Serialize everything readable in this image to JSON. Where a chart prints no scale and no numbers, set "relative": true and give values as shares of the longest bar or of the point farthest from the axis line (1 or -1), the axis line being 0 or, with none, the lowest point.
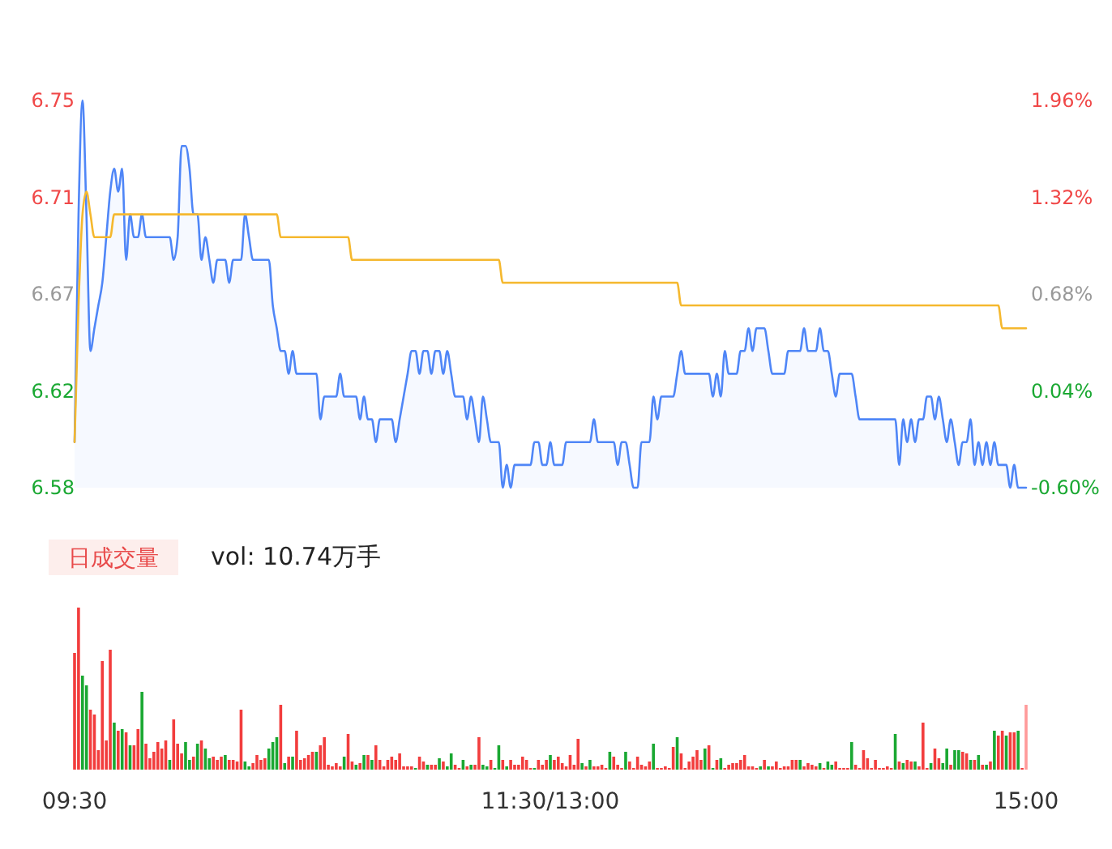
{
  "chart_data": [
    {
      "type": "area",
      "categories": [
        null,
        null,
        null,
        null,
        null,
        null,
        null,
        null,
        null,
        null,
        null,
        null,
        null,
        null,
        null,
        null,
        null,
        null,
        null,
        null,
        null,
        null,
        null,
        null,
        null,
        null,
        null,
        null,
        null,
        null,
        null,
        null,
        null,
        null,
        null,
        null,
        null,
        null,
        null,
        null,
        null,
        null,
        null,
        null,
        null,
        null,
        null,
        null,
        null,
        null,
        null,
        null,
        null,
        null,
        null,
        null,
        null,
        null,
        null,
        null,
        null,
        null,
        null,
        null,
        null,
        null,
        null,
        null,
        null,
        null,
        null,
        null,
        null,
        null,
        null,
        null,
        null,
        null,
        null,
        null,
        null,
        null,
        null,
        null,
        null,
        null,
        null,
        null,
        null,
        null,
        null,
        null,
        null,
        null,
        null,
        null,
        null,
        null,
        null,
        null,
        null,
        null,
        null,
        null,
        null,
        null,
        null,
        null,
        null,
        null,
        null,
        null,
        null,
        null,
        null,
        null,
        null,
        null,
        null,
        null,
        null,
        null,
        null,
        null,
        null,
        null,
        null,
        null,
        null,
        null,
        null,
        null,
        null,
        null,
        null,
        null,
        null,
        null,
        null,
        null,
        null,
        null,
        null,
        null,
        null,
        null,
        null,
        null,
        null,
        null,
        null,
        null,
        null,
        null,
        null,
        null,
        null,
        null,
        null,
        null,
        null,
        null,
        null,
        null,
        null,
        null,
        null,
        null,
        null,
        null,
        null,
        null,
        null,
        null,
        null,
        null,
        null,
        null,
        null,
        null,
        null,
        null,
        null,
        null,
        null,
        null,
        null,
        null,
        null,
        null,
        null,
        null,
        null,
        null,
        null,
        null,
        null,
        null,
        null,
        null,
        null,
        null,
        null,
        null,
        null,
        null,
        null,
        null,
        null,
        null,
        null,
        null,
        null,
        null,
        null,
        null,
        null,
        null,
        null,
        null,
        null,
        null,
        null,
        null,
        null,
        null,
        null,
        null,
        null,
        null,
        null,
        null,
        null,
        null,
        null,
        null,
        null,
        null,
        null,
        null,
        null
      ],
      "ylim": [
        6.58,
        6.75
      ],
      "yticks": [
        {
          "value": 6.58,
          "label": "6.58"
        },
        {
          "value": 6.6225,
          "label": "6.62"
        },
        {
          "value": 6.665,
          "label": "6.67"
        },
        {
          "value": 6.7075,
          "label": "6.71"
        },
        {
          "value": 6.75,
          "label": "6.75"
        }
      ],
      "y2lim": [
        -0.6,
        1.96
      ],
      "y2ticks": [
        {
          "value": -0.6,
          "label": "-0.60%"
        },
        {
          "value": 0.04,
          "label": "0.04%"
        },
        {
          "value": 0.68,
          "label": "0.68%"
        },
        {
          "value": 1.32,
          "label": "1.32%"
        },
        {
          "value": 1.96,
          "label": "1.96%"
        }
      ],
      "tick_labels": "y",
      "series": [
        {
          "color": "#4f86f7",
          "values": [
            6.6,
            6.7,
            6.75,
            6.7,
            6.64,
            6.65,
            6.66,
            6.67,
            6.69,
            6.71,
            6.72,
            6.71,
            6.72,
            6.68,
            6.7,
            6.69,
            6.69,
            6.7,
            6.69,
            6.69,
            6.69,
            6.69,
            6.69,
            6.69,
            6.69,
            6.68,
            6.69,
            6.73,
            6.73,
            6.72,
            6.7,
            6.7,
            6.68,
            6.69,
            6.68,
            6.67,
            6.68,
            6.68,
            6.68,
            6.67,
            6.68,
            6.68,
            6.68,
            6.7,
            6.69,
            6.68,
            6.68,
            6.68,
            6.68,
            6.68,
            6.66,
            6.65,
            6.64,
            6.64,
            6.63,
            6.64,
            6.63,
            6.63,
            6.63,
            6.63,
            6.63,
            6.63,
            6.61,
            6.62,
            6.62,
            6.62,
            6.62,
            6.63,
            6.62,
            6.62,
            6.62,
            6.62,
            6.61,
            6.62,
            6.61,
            6.61,
            6.6,
            6.61,
            6.61,
            6.61,
            6.61,
            6.6,
            6.61,
            6.62,
            6.63,
            6.64,
            6.64,
            6.63,
            6.64,
            6.64,
            6.63,
            6.64,
            6.64,
            6.63,
            6.64,
            6.63,
            6.62,
            6.62,
            6.62,
            6.61,
            6.62,
            6.61,
            6.6,
            6.62,
            6.61,
            6.6,
            6.6,
            6.6,
            6.58,
            6.59,
            6.58,
            6.59,
            6.59,
            6.59,
            6.59,
            6.59,
            6.6,
            6.6,
            6.59,
            6.59,
            6.6,
            6.59,
            6.59,
            6.59,
            6.6,
            6.6,
            6.6,
            6.6,
            6.6,
            6.6,
            6.6,
            6.61,
            6.6,
            6.6,
            6.6,
            6.6,
            6.6,
            6.59,
            6.6,
            6.6,
            6.59,
            6.58,
            6.58,
            6.6,
            6.6,
            6.6,
            6.62,
            6.61,
            6.62,
            6.62,
            6.62,
            6.62,
            6.63,
            6.64,
            6.63,
            6.63,
            6.63,
            6.63,
            6.63,
            6.63,
            6.63,
            6.62,
            6.63,
            6.62,
            6.64,
            6.63,
            6.63,
            6.63,
            6.64,
            6.64,
            6.65,
            6.64,
            6.65,
            6.65,
            6.65,
            6.64,
            6.63,
            6.63,
            6.63,
            6.63,
            6.64,
            6.64,
            6.64,
            6.64,
            6.65,
            6.64,
            6.64,
            6.64,
            6.65,
            6.64,
            6.64,
            6.63,
            6.62,
            6.63,
            6.63,
            6.63,
            6.63,
            6.62,
            6.61,
            6.61,
            6.61,
            6.61,
            6.61,
            6.61,
            6.61,
            6.61,
            6.61,
            6.61,
            6.59,
            6.61,
            6.6,
            6.61,
            6.6,
            6.61,
            6.61,
            6.62,
            6.62,
            6.61,
            6.62,
            6.61,
            6.6,
            6.61,
            6.6,
            6.59,
            6.6,
            6.6,
            6.61,
            6.59,
            6.6,
            6.59,
            6.6,
            6.59,
            6.6,
            6.59,
            6.59,
            6.59,
            6.58,
            6.59,
            6.58,
            6.58,
            6.58
          ]
        },
        {
          "type": "line",
          "color": "#f5b82e",
          "values": [
            6.6,
            6.66,
            6.7,
            6.71,
            6.7,
            6.69,
            6.69,
            6.69,
            6.69,
            6.69,
            6.7,
            6.7,
            6.7,
            6.7,
            6.7,
            6.7,
            6.7,
            6.7,
            6.7,
            6.7,
            6.7,
            6.7,
            6.7,
            6.7,
            6.7,
            6.7,
            6.7,
            6.7,
            6.7,
            6.7,
            6.7,
            6.7,
            6.7,
            6.7,
            6.7,
            6.7,
            6.7,
            6.7,
            6.7,
            6.7,
            6.7,
            6.7,
            6.7,
            6.7,
            6.7,
            6.7,
            6.7,
            6.7,
            6.7,
            6.7,
            6.7,
            6.7,
            6.69,
            6.69,
            6.69,
            6.69,
            6.69,
            6.69,
            6.69,
            6.69,
            6.69,
            6.69,
            6.69,
            6.69,
            6.69,
            6.69,
            6.69,
            6.69,
            6.69,
            6.69,
            6.68,
            6.68,
            6.68,
            6.68,
            6.68,
            6.68,
            6.68,
            6.68,
            6.68,
            6.68,
            6.68,
            6.68,
            6.68,
            6.68,
            6.68,
            6.68,
            6.68,
            6.68,
            6.68,
            6.68,
            6.68,
            6.68,
            6.68,
            6.68,
            6.68,
            6.68,
            6.68,
            6.68,
            6.68,
            6.68,
            6.68,
            6.68,
            6.68,
            6.68,
            6.68,
            6.68,
            6.68,
            6.68,
            6.67,
            6.67,
            6.67,
            6.67,
            6.67,
            6.67,
            6.67,
            6.67,
            6.67,
            6.67,
            6.67,
            6.67,
            6.67,
            6.67,
            6.67,
            6.67,
            6.67,
            6.67,
            6.67,
            6.67,
            6.67,
            6.67,
            6.67,
            6.67,
            6.67,
            6.67,
            6.67,
            6.67,
            6.67,
            6.67,
            6.67,
            6.67,
            6.67,
            6.67,
            6.67,
            6.67,
            6.67,
            6.67,
            6.67,
            6.67,
            6.67,
            6.67,
            6.67,
            6.67,
            6.67,
            6.66,
            6.66,
            6.66,
            6.66,
            6.66,
            6.66,
            6.66,
            6.66,
            6.66,
            6.66,
            6.66,
            6.66,
            6.66,
            6.66,
            6.66,
            6.66,
            6.66,
            6.66,
            6.66,
            6.66,
            6.66,
            6.66,
            6.66,
            6.66,
            6.66,
            6.66,
            6.66,
            6.66,
            6.66,
            6.66,
            6.66,
            6.66,
            6.66,
            6.66,
            6.66,
            6.66,
            6.66,
            6.66,
            6.66,
            6.66,
            6.66,
            6.66,
            6.66,
            6.66,
            6.66,
            6.66,
            6.66,
            6.66,
            6.66,
            6.66,
            6.66,
            6.66,
            6.66,
            6.66,
            6.66,
            6.66,
            6.66,
            6.66,
            6.66,
            6.66,
            6.66,
            6.66,
            6.66,
            6.66,
            6.66,
            6.66,
            6.66,
            6.66,
            6.66,
            6.66,
            6.66,
            6.66,
            6.66,
            6.66,
            6.66,
            6.66,
            6.66,
            6.66,
            6.66,
            6.66,
            6.66,
            6.65,
            6.65,
            6.65,
            6.65,
            6.65,
            6.65,
            6.65
          ]
        }
      ]
    },
    {
      "type": "bar",
      "relative": true,
      "tick_labels": "x",
      "annotations": [
        "日成交量",
        "vol: 10.74万手"
      ],
      "categories": [
        "09:30",
        null,
        null,
        null,
        null,
        null,
        null,
        null,
        null,
        null,
        null,
        null,
        null,
        null,
        null,
        null,
        null,
        null,
        null,
        null,
        null,
        null,
        null,
        null,
        null,
        null,
        null,
        null,
        null,
        null,
        null,
        null,
        null,
        null,
        null,
        null,
        null,
        null,
        null,
        null,
        null,
        null,
        null,
        null,
        null,
        null,
        null,
        null,
        null,
        null,
        null,
        null,
        null,
        null,
        null,
        null,
        null,
        null,
        null,
        null,
        null,
        null,
        null,
        null,
        null,
        null,
        null,
        null,
        null,
        null,
        null,
        null,
        null,
        null,
        null,
        null,
        null,
        null,
        null,
        null,
        null,
        null,
        null,
        null,
        null,
        null,
        null,
        null,
        null,
        null,
        null,
        null,
        null,
        null,
        null,
        null,
        null,
        null,
        null,
        null,
        null,
        null,
        null,
        null,
        null,
        null,
        null,
        null,
        null,
        null,
        null,
        null,
        null,
        null,
        null,
        null,
        null,
        null,
        null,
        null,
        "11:30/13:00",
        null,
        null,
        null,
        null,
        null,
        null,
        null,
        null,
        null,
        null,
        null,
        null,
        null,
        null,
        null,
        null,
        null,
        null,
        null,
        null,
        null,
        null,
        null,
        null,
        null,
        null,
        null,
        null,
        null,
        null,
        null,
        null,
        null,
        null,
        null,
        null,
        null,
        null,
        null,
        null,
        null,
        null,
        null,
        null,
        null,
        null,
        null,
        null,
        null,
        null,
        null,
        null,
        null,
        null,
        null,
        null,
        null,
        null,
        null,
        null,
        null,
        null,
        null,
        null,
        null,
        null,
        null,
        null,
        null,
        null,
        null,
        null,
        null,
        null,
        null,
        null,
        null,
        null,
        null,
        null,
        null,
        null,
        null,
        null,
        null,
        null,
        null,
        null,
        null,
        null,
        null,
        null,
        null,
        null,
        null,
        null,
        null,
        null,
        null,
        null,
        null,
        null,
        null,
        null,
        null,
        null,
        null,
        null,
        null,
        null,
        null,
        null,
        null,
        null,
        null,
        null,
        null,
        null,
        null,
        "15:00"
      ],
      "series": [
        {
          "values": [
            0.72,
            1,
            0.58,
            0.52,
            0.37,
            0.34,
            0.12,
            0.67,
            0.18,
            0.74,
            0.29,
            0.24,
            0.25,
            0.23,
            0.15,
            0.15,
            0.25,
            0.48,
            0.16,
            0.07,
            0.11,
            0.17,
            0.13,
            0.18,
            0.06,
            0.31,
            0.16,
            0.1,
            0.17,
            0.06,
            0.08,
            0.16,
            0.18,
            0.13,
            0.07,
            0.08,
            0.06,
            0.08,
            0.09,
            0.06,
            0.06,
            0.05,
            0.37,
            0.05,
            0.02,
            0.04,
            0.09,
            0.06,
            0.07,
            0.13,
            0.17,
            0.2,
            0.4,
            0.04,
            0.08,
            0.08,
            0.24,
            0.06,
            0.07,
            0.09,
            0.11,
            0.11,
            0.15,
            0.2,
            0.03,
            0.02,
            0.04,
            0.02,
            0.08,
            0.22,
            0.05,
            0.03,
            0.04,
            0.09,
            0.09,
            0.06,
            0.15,
            0.06,
            0.02,
            0.06,
            0.08,
            0.06,
            0.1,
            0.02,
            0.02,
            0.02,
            0.01,
            0.08,
            0.05,
            0.03,
            0.03,
            0.03,
            0.07,
            0.05,
            0.02,
            0.1,
            0.03,
            0.01,
            0.06,
            0.02,
            0.03,
            0.03,
            0.2,
            0.03,
            0.02,
            0.06,
            0.01,
            0.15,
            0.06,
            0.02,
            0.06,
            0.03,
            0.03,
            0.08,
            0.06,
            0.01,
            0.01,
            0.06,
            0.03,
            0.06,
            0.09,
            0.06,
            0.08,
            0.04,
            0.02,
            0.09,
            0.03,
            0.19,
            0.04,
            0.02,
            0.06,
            0.02,
            0.02,
            0.03,
            0.01,
            0.11,
            0.08,
            0.03,
            0.01,
            0.11,
            0.05,
            0.01,
            0.08,
            0.03,
            0.02,
            0.05,
            0.16,
            0.01,
            0.01,
            0.02,
            0.01,
            0.14,
            0.2,
            0.1,
            0.01,
            0.05,
            0.08,
            0.12,
            0.06,
            0.13,
            0.15,
            0.01,
            0.06,
            0.07,
            0.01,
            0.03,
            0.04,
            0.04,
            0.06,
            0.09,
            0.02,
            0.02,
            0.01,
            0.02,
            0.06,
            0.02,
            0.02,
            0.05,
            0.01,
            0.02,
            0.02,
            0.06,
            0.06,
            0.06,
            0.02,
            0.04,
            0.03,
            0.02,
            0.04,
            0.01,
            0.05,
            0.03,
            0.05,
            0.01,
            0.01,
            0.01,
            0.17,
            0.03,
            0.01,
            0.12,
            0.07,
            0.01,
            0.06,
            0.01,
            0.01,
            0.02,
            0.01,
            0.22,
            0.05,
            0.04,
            0.06,
            0.05,
            0.05,
            0.02,
            0.29,
            0.01,
            0.04,
            0.13,
            0.07,
            0.04,
            0.13,
            0.03,
            0.12,
            0.12,
            0.11,
            0.1,
            0.06,
            0.06,
            0.09,
            0.03,
            0.03,
            0.05,
            0.24,
            0.21,
            0.24,
            0.21,
            0.23,
            0.23,
            0.24,
            0.01,
            0.4
          ],
          "colors": [
            "#f23d3d",
            "#f23d3d",
            "#1aa832",
            "#1aa832",
            "#f23d3d",
            "#f23d3d",
            "#f23d3d",
            "#f23d3d",
            "#f23d3d",
            "#f23d3d",
            "#1aa832",
            "#f23d3d",
            "#1aa832",
            "#f23d3d",
            "#1aa832",
            "#f23d3d",
            "#f23d3d",
            "#1aa832",
            "#f23d3d",
            "#f23d3d",
            "#f23d3d",
            "#f23d3d",
            "#f23d3d",
            "#f23d3d",
            "#1aa832",
            "#f23d3d",
            "#f23d3d",
            "#f23d3d",
            "#1aa832",
            "#1aa832",
            "#f23d3d",
            "#1aa832",
            "#f23d3d",
            "#1aa832",
            "#1aa832",
            "#f23d3d",
            "#f23d3d",
            "#f23d3d",
            "#1aa832",
            "#f23d3d",
            "#f23d3d",
            "#f23d3d",
            "#f23d3d",
            "#1aa832",
            "#1aa832",
            "#f23d3d",
            "#f23d3d",
            "#f23d3d",
            "#f23d3d",
            "#1aa832",
            "#1aa832",
            "#1aa832",
            "#f23d3d",
            "#1aa832",
            "#f23d3d",
            "#1aa832",
            "#f23d3d",
            "#f23d3d",
            "#f23d3d",
            "#f23d3d",
            "#f23d3d",
            "#1aa832",
            "#f23d3d",
            "#f23d3d",
            "#f23d3d",
            "#f23d3d",
            "#f23d3d",
            "#f23d3d",
            "#1aa832",
            "#f23d3d",
            "#f23d3d",
            "#1aa832",
            "#f23d3d",
            "#1aa832",
            "#f23d3d",
            "#1aa832",
            "#f23d3d",
            "#f23d3d",
            "#f23d3d",
            "#f23d3d",
            "#f23d3d",
            "#f23d3d",
            "#f23d3d",
            "#f23d3d",
            "#f23d3d",
            "#f23d3d",
            "#1aa832",
            "#f23d3d",
            "#f23d3d",
            "#1aa832",
            "#f23d3d",
            "#f23d3d",
            "#1aa832",
            "#f23d3d",
            "#1aa832",
            "#1aa832",
            "#f23d3d",
            "#f23d3d",
            "#1aa832",
            "#f23d3d",
            "#1aa832",
            "#f23d3d",
            "#f23d3d",
            "#1aa832",
            "#1aa832",
            "#f23d3d",
            "#1aa832",
            "#1aa832",
            "#f23d3d",
            "#1aa832",
            "#f23d3d",
            "#f23d3d",
            "#f23d3d",
            "#f23d3d",
            "#f23d3d",
            "#f23d3d",
            "#1aa832",
            "#f23d3d",
            "#f23d3d",
            "#f23d3d",
            "#1aa832",
            "#f23d3d",
            "#f23d3d",
            "#f23d3d",
            "#f23d3d",
            "#f23d3d",
            "#f23d3d",
            "#f23d3d",
            "#1aa832",
            "#f23d3d",
            "#1aa832",
            "#f23d3d",
            "#f23d3d",
            "#f23d3d",
            "#f23d3d",
            "#1aa832",
            "#f23d3d",
            "#f23d3d",
            "#f23d3d",
            "#1aa832",
            "#f23d3d",
            "#f23d3d",
            "#f23d3d",
            "#f23d3d",
            "#f23d3d",
            "#f23d3d",
            "#1aa832",
            "#f23d3d",
            "#f23d3d",
            "#f23d3d",
            "#f23d3d",
            "#f23d3d",
            "#1aa832",
            "#f23d3d",
            "#f23d3d",
            "#f23d3d",
            "#f23d3d",
            "#f23d3d",
            "#f23d3d",
            "#1aa832",
            "#f23d3d",
            "#1aa832",
            "#f23d3d",
            "#1aa832",
            "#f23d3d",
            "#f23d3d",
            "#f23d3d",
            "#f23d3d",
            "#f23d3d",
            "#f23d3d",
            "#f23d3d",
            "#f23d3d",
            "#f23d3d",
            "#1aa832",
            "#f23d3d",
            "#1aa832",
            "#f23d3d",
            "#f23d3d",
            "#f23d3d",
            "#f23d3d",
            "#f23d3d",
            "#f23d3d",
            "#f23d3d",
            "#1aa832",
            "#f23d3d",
            "#f23d3d",
            "#f23d3d",
            "#f23d3d",
            "#1aa832",
            "#f23d3d",
            "#1aa832",
            "#1aa832",
            "#f23d3d",
            "#f23d3d",
            "#f23d3d",
            "#f23d3d",
            "#1aa832",
            "#f23d3d",
            "#f23d3d",
            "#f23d3d",
            "#f23d3d",
            "#f23d3d",
            "#f23d3d",
            "#f23d3d",
            "#f23d3d",
            "#f23d3d",
            "#f23d3d",
            "#1aa832",
            "#f23d3d",
            "#1aa832",
            "#f23d3d",
            "#f23d3d",
            "#1aa832",
            "#f23d3d",
            "#f23d3d",
            "#f23d3d",
            "#1aa832",
            "#f23d3d",
            "#f23d3d",
            "#1aa832",
            "#1aa832",
            "#f23d3d",
            "#1aa832",
            "#1aa832",
            "#f23d3d",
            "#f23d3d",
            "#1aa832",
            "#f23d3d",
            "#1aa832",
            "#f23d3d",
            "#1aa832",
            "#f23d3d",
            "#1aa832",
            "#f23d3d",
            "#f23d3d",
            "#1aa832",
            "#f23d3d",
            "#f23d3d",
            "#1aa832",
            "#f23d3d",
            "#ff9a9a"
          ]
        }
      ]
    }
  ]
}
